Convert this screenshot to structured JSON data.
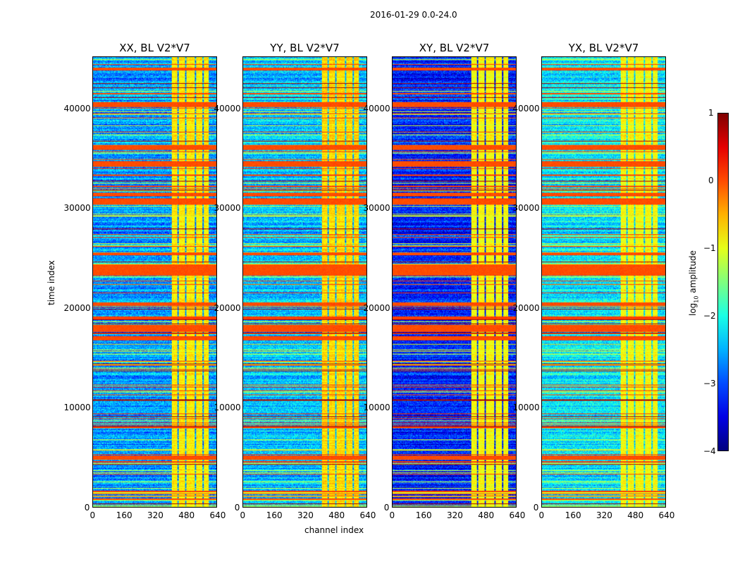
{
  "figure_title": "2016-01-29 0.0-24.0",
  "chart_data": {
    "type": "heatmap",
    "title": "2016-01-29 0.0-24.0",
    "panels": [
      {
        "title": "XX, BL V2*V7",
        "noise_level": -2.6,
        "band_level": -0.8
      },
      {
        "title": "YY, BL V2*V7",
        "noise_level": -2.4,
        "band_level": -0.7
      },
      {
        "title": "XY, BL V2*V7",
        "noise_level": -3.2,
        "band_level": -0.9
      },
      {
        "title": "YX, BL V2*V7",
        "noise_level": -2.2,
        "band_level": -0.9
      }
    ],
    "xlabel": "channel index",
    "ylabel": "time index",
    "xlim": [
      0,
      640
    ],
    "ylim": [
      0,
      45200
    ],
    "xticks": [
      "0",
      "160",
      "320",
      "480",
      "640"
    ],
    "yticks": [
      "0",
      "10000",
      "20000",
      "30000",
      "40000"
    ],
    "bright_channel_range": [
      405,
      600
    ],
    "high_amplitude_time_ranges": [
      [
        23300,
        24400
      ],
      [
        17600,
        18300
      ],
      [
        16800,
        17100
      ],
      [
        34200,
        34800
      ],
      [
        35900,
        36400
      ],
      [
        31300,
        31600
      ],
      [
        30400,
        31000
      ],
      [
        40200,
        40700
      ],
      [
        4800,
        5100
      ],
      [
        20300,
        20600
      ],
      [
        25300,
        25600
      ],
      [
        43900,
        44200
      ]
    ],
    "colorbar": {
      "label": "log10 amplitude",
      "range": [
        -4,
        1
      ],
      "ticks": [
        "1",
        "0",
        "−1",
        "−2",
        "−3",
        "−4"
      ],
      "colormap": "jet"
    }
  }
}
